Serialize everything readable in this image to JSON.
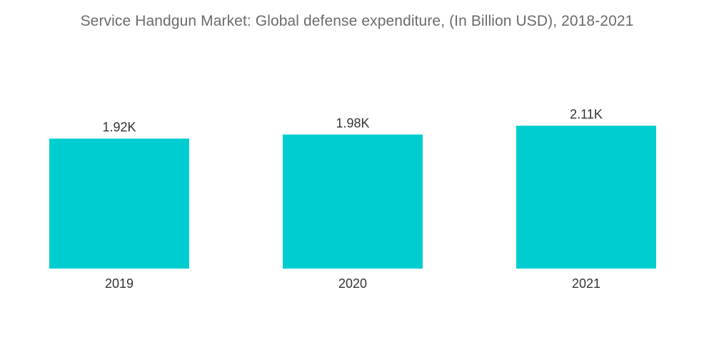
{
  "chart_data": {
    "type": "bar",
    "title": "Service Handgun Market: Global defense expenditure, (In Billion USD), 2018-2021",
    "categories": [
      "2019",
      "2020",
      "2021"
    ],
    "values": [
      1920,
      1980,
      2110
    ],
    "data_labels": [
      "1.92K",
      "1.98K",
      "2.11K"
    ],
    "xlabel": "",
    "ylabel": "",
    "ylim": [
      0,
      2110
    ],
    "grid": false,
    "legend": "none",
    "bar_color": "#00cdd0"
  }
}
